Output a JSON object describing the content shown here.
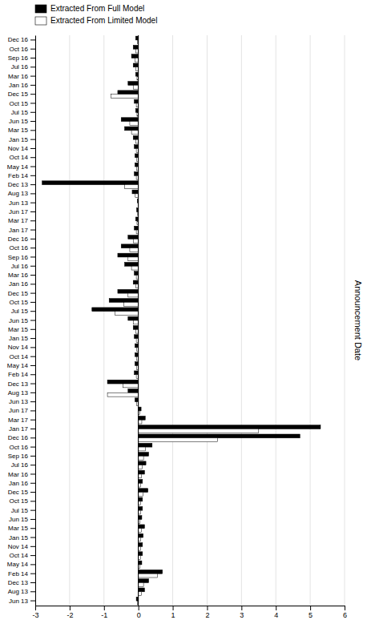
{
  "chart_data": {
    "type": "bar",
    "orientation": "horizontal",
    "ylabel": "Announcement Date",
    "categories": [
      "Dec 16",
      "Oct 16",
      "Sep 16",
      "Jul 16",
      "Mar 16",
      "Jan 16",
      "Dec 15",
      "Oct 15",
      "Jul 15",
      "Jun 15",
      "Mar 15",
      "Jan 15",
      "Nov 14",
      "Oct 14",
      "May 14",
      "Feb 14",
      "Dec 13",
      "Aug 13",
      "Jun 13",
      "Jun 17",
      "Mar 17",
      "Jan 17",
      "Dec 16",
      "Oct 16",
      "Sep 16",
      "Jul 16",
      "Mar 16",
      "Jan 16",
      "Dec 15",
      "Oct 15",
      "Jul 15",
      "Jun 15",
      "Mar 15",
      "Jan 15",
      "Nov 14",
      "Oct 14",
      "May 14",
      "Feb 14",
      "Dec 13",
      "Aug 13",
      "Jun 13",
      "Jun 17",
      "Mar 17",
      "Jan 17",
      "Dec 16",
      "Oct 16",
      "Sep 16",
      "Jul 16",
      "Mar 16",
      "Jan 16",
      "Dec 15",
      "Oct 15",
      "Jul 15",
      "Jun 15",
      "Mar 15",
      "Jan 15",
      "Nov 14",
      "Oct 14",
      "May 14",
      "Feb 14",
      "Dec 13",
      "Aug 13",
      "Jun 13"
    ],
    "series": [
      {
        "name": "Extracted From Full Model",
        "color": "#000000",
        "values": [
          -0.08,
          -0.15,
          -0.2,
          -0.15,
          -0.08,
          -0.3,
          -0.6,
          -0.12,
          -0.08,
          -0.5,
          -0.4,
          -0.15,
          -0.12,
          -0.1,
          -0.1,
          -0.12,
          -2.8,
          -0.18,
          -0.03,
          -0.05,
          -0.08,
          -0.12,
          -0.3,
          -0.5,
          -0.6,
          -0.4,
          -0.12,
          -0.15,
          -0.6,
          -0.85,
          -1.35,
          -0.3,
          -0.15,
          -0.12,
          -0.1,
          -0.1,
          -0.1,
          -0.12,
          -0.9,
          -0.3,
          -0.1,
          0.08,
          0.2,
          5.3,
          4.7,
          0.4,
          0.3,
          0.22,
          0.18,
          0.12,
          0.28,
          0.12,
          0.12,
          0.1,
          0.18,
          0.14,
          0.12,
          0.12,
          0.1,
          0.7,
          0.3,
          0.18,
          -0.06
        ]
      },
      {
        "name": "Extracted From Limited Model",
        "color": "#ffffff",
        "values": [
          -0.03,
          -0.08,
          -0.1,
          -0.08,
          -0.04,
          -0.15,
          -0.8,
          -0.06,
          -0.04,
          -0.25,
          -0.2,
          -0.08,
          -0.06,
          -0.05,
          -0.05,
          -0.06,
          -0.4,
          -0.09,
          -0.01,
          -0.02,
          -0.04,
          -0.06,
          -0.15,
          -0.25,
          -0.3,
          -0.2,
          -0.06,
          -0.08,
          -0.3,
          -0.42,
          -0.68,
          -0.15,
          -0.08,
          -0.06,
          -0.05,
          -0.05,
          -0.05,
          -0.06,
          -0.45,
          -0.9,
          -0.05,
          0.04,
          0.1,
          3.5,
          2.3,
          0.2,
          0.15,
          0.11,
          0.09,
          0.06,
          0.14,
          0.06,
          0.06,
          0.05,
          0.09,
          0.07,
          0.06,
          0.06,
          0.05,
          0.55,
          0.15,
          0.09,
          -0.03
        ]
      }
    ],
    "xlim": [
      -3,
      6
    ],
    "xticks": [
      -3,
      -2,
      -1,
      0,
      1,
      2,
      3,
      4,
      5,
      6
    ],
    "grid": true,
    "legend": "upper left"
  }
}
